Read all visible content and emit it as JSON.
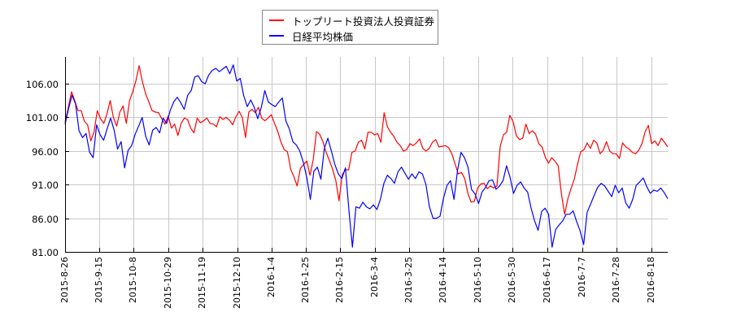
{
  "chart_data": {
    "type": "line",
    "title": "",
    "xlabel": "",
    "ylabel": "",
    "ylim": [
      81.0,
      110.0
    ],
    "grid": true,
    "legend_position": "top-center",
    "yticks": [
      "106.00",
      "101.00",
      "96.00",
      "91.00",
      "86.00",
      "81.00"
    ],
    "ytick_values": [
      106,
      101,
      96,
      91,
      86,
      81
    ],
    "xticks": [
      "2015-8-26",
      "2015-9-15",
      "2015-10-8",
      "2015-10-29",
      "2015-11-19",
      "2015-12-10",
      "2016-1-4",
      "2016-1-25",
      "2016-2-15",
      "2016-3-4",
      "2016-3-25",
      "2016-4-14",
      "2016-5-10",
      "2016-5-30",
      "2016-6-17",
      "2016-7-7",
      "2016-7-28",
      "2016-8-18"
    ],
    "series": [
      {
        "name": "トップリート投資法人投資証券",
        "color": "#ff0000",
        "values": [
          100.3,
          102.5,
          104.8,
          103.5,
          102.0,
          102.0,
          100.4,
          99.9,
          97.5,
          98.9,
          102.0,
          100.8,
          100.1,
          101.5,
          103.5,
          101.0,
          99.7,
          101.8,
          102.7,
          100.1,
          103.5,
          104.8,
          106.5,
          108.7,
          106.3,
          104.5,
          103.3,
          102.0,
          101.8,
          101.7,
          100.8,
          100.0,
          101.2,
          99.4,
          100.0,
          98.3,
          100.1,
          100.9,
          100.7,
          99.4,
          98.7,
          100.9,
          100.2,
          100.5,
          100.9,
          100.1,
          100.0,
          99.6,
          101.1,
          100.7,
          101.0,
          100.6,
          99.9,
          101.1,
          101.9,
          101.0,
          98.0,
          101.8,
          102.2,
          101.7,
          102.5,
          100.9,
          100.5,
          100.9,
          101.4,
          100.1,
          98.9,
          97.3,
          96.2,
          95.9,
          93.3,
          92.2,
          90.8,
          93.4,
          94.0,
          94.5,
          92.4,
          94.7,
          98.9,
          98.5,
          97.4,
          95.8,
          94.6,
          93.3,
          91.6,
          88.6,
          92.5,
          93.2,
          93.2,
          95.8,
          96.0,
          97.3,
          97.6,
          96.3,
          98.8,
          98.8,
          98.4,
          98.6,
          97.3,
          101.7,
          99.6,
          98.8,
          98.2,
          97.3,
          96.8,
          96.0,
          96.2,
          97.1,
          96.8,
          97.2,
          97.8,
          96.4,
          96.0,
          96.4,
          97.3,
          97.7,
          96.6,
          96.7,
          96.8,
          96.5,
          95.6,
          94.1,
          92.6,
          92.8,
          91.9,
          89.7,
          88.4,
          88.5,
          90.5,
          91.1,
          91.2,
          90.4,
          90.8,
          90.5,
          90.8,
          96.6,
          98.4,
          98.8,
          101.3,
          100.4,
          98.3,
          97.7,
          97.9,
          100.0,
          98.6,
          99.0,
          98.5,
          97.1,
          96.6,
          95.1,
          94.2,
          95.0,
          94.5,
          93.8,
          89.7,
          86.6,
          88.9,
          90.4,
          91.8,
          94.0,
          95.9,
          96.2,
          97.2,
          96.4,
          97.6,
          97.2,
          95.6,
          96.1,
          97.4,
          96.0,
          95.6,
          95.6,
          94.9,
          97.2,
          96.6,
          96.3,
          95.8,
          95.6,
          96.1,
          97.1,
          98.9,
          99.8,
          97.1,
          97.5,
          96.8,
          97.9,
          97.3,
          96.6
        ]
      },
      {
        "name": "日経平均株価",
        "color": "#0000ff",
        "values": [
          100.0,
          102.3,
          104.3,
          103.0,
          99.0,
          98.0,
          98.6,
          95.8,
          95.0,
          99.9,
          98.4,
          97.6,
          99.3,
          100.9,
          99.1,
          96.3,
          97.4,
          93.5,
          96.1,
          96.8,
          98.5,
          99.7,
          101.0,
          98.2,
          96.9,
          99.1,
          99.5,
          98.7,
          100.9,
          100.1,
          102.0,
          103.3,
          104.0,
          103.2,
          102.2,
          104.3,
          105.0,
          107.0,
          107.2,
          106.3,
          106.0,
          107.3,
          108.0,
          108.3,
          107.8,
          108.2,
          108.6,
          107.5,
          108.8,
          106.4,
          106.8,
          104.2,
          102.6,
          103.6,
          102.5,
          100.8,
          102.5,
          105.0,
          103.3,
          102.9,
          102.6,
          103.3,
          103.9,
          100.5,
          99.3,
          97.4,
          96.9,
          96.0,
          94.3,
          92.0,
          88.8,
          93.0,
          93.6,
          91.8,
          96.4,
          97.9,
          96.0,
          94.0,
          92.6,
          91.9,
          93.5,
          87.2,
          81.7,
          87.7,
          87.5,
          88.4,
          87.7,
          87.4,
          88.0,
          87.3,
          88.8,
          91.2,
          92.4,
          91.9,
          91.2,
          92.9,
          93.6,
          92.7,
          91.8,
          92.6,
          91.9,
          92.9,
          92.6,
          91.0,
          87.7,
          86.0,
          86.0,
          86.3,
          89.0,
          90.9,
          91.6,
          88.8,
          93.1,
          95.8,
          95.0,
          93.6,
          90.3,
          89.6,
          88.2,
          89.9,
          90.6,
          91.6,
          91.7,
          90.3,
          90.8,
          91.6,
          93.8,
          92.1,
          89.7,
          90.9,
          91.4,
          90.5,
          89.9,
          87.5,
          85.6,
          84.2,
          87.0,
          87.5,
          86.6,
          81.7,
          84.3,
          85.0,
          85.6,
          86.6,
          86.6,
          87.1,
          85.5,
          84.1,
          82.1,
          86.9,
          88.1,
          89.4,
          90.6,
          91.2,
          90.8,
          90.0,
          89.2,
          90.9,
          89.8,
          90.5,
          88.3,
          87.5,
          88.8,
          90.9,
          91.4,
          92.0,
          90.7,
          89.7,
          90.2,
          90.0,
          90.5,
          89.8,
          88.9
        ]
      }
    ]
  },
  "legend": {
    "items": [
      {
        "label": "トップリート投資法人投資証券",
        "color": "#ff0000"
      },
      {
        "label": "日経平均株価",
        "color": "#0000ff"
      }
    ]
  }
}
